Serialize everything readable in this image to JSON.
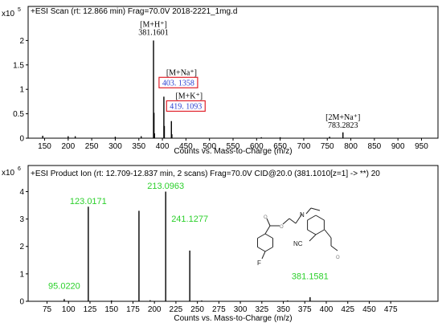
{
  "chart_data": [
    {
      "type": "bar",
      "header": "+ESI Scan (rt: 12.866 min) Frag=70.0V 2018-2221_1mg.d",
      "scale_label": "x10",
      "scale_exp": "5",
      "xlabel": "Counts vs. Mass-to-Charge (m/z)",
      "xlim": [
        115,
        985
      ],
      "ylim": [
        0,
        2.5
      ],
      "xticks": [
        150,
        200,
        250,
        300,
        350,
        400,
        450,
        500,
        550,
        600,
        650,
        700,
        750,
        800,
        850,
        900,
        950
      ],
      "yticks": [
        0,
        0.5,
        1,
        1.5,
        2
      ],
      "ytick_labels": [
        "0",
        "0.5",
        "1",
        "1.5",
        "2"
      ],
      "color": "#000000",
      "peaks": [
        {
          "x": 381.16,
          "y": 2.0
        },
        {
          "x": 382.16,
          "y": 0.52
        },
        {
          "x": 383.2,
          "y": 0.1
        },
        {
          "x": 403.14,
          "y": 0.85
        },
        {
          "x": 404.14,
          "y": 0.25
        },
        {
          "x": 419.11,
          "y": 0.35
        },
        {
          "x": 420.1,
          "y": 0.08
        },
        {
          "x": 783.28,
          "y": 0.12
        },
        {
          "x": 146,
          "y": 0.05
        },
        {
          "x": 200,
          "y": 0.04
        },
        {
          "x": 215,
          "y": 0.04
        },
        {
          "x": 300,
          "y": 0.03
        },
        {
          "x": 355,
          "y": 0.04
        },
        {
          "x": 610,
          "y": 0.02
        },
        {
          "x": 650,
          "y": 0.02
        },
        {
          "x": 755,
          "y": 0.03
        }
      ],
      "annotations": [
        {
          "x": 381.16,
          "y": 2.08,
          "lines": [
            "[M+H⁺]",
            "381.1601"
          ],
          "style": "plain"
        },
        {
          "x": 403.14,
          "y": 0.9,
          "lines": [
            "[M+Na⁺]",
            "403. 1358"
          ],
          "style": "boxed"
        },
        {
          "x": 419.11,
          "y": 0.42,
          "lines": [
            "[M+K⁺]",
            "419. 1093"
          ],
          "style": "boxed"
        },
        {
          "x": 783.28,
          "y": 0.18,
          "lines": [
            "[2M+Na⁺]",
            "783.2823"
          ],
          "style": "plain"
        }
      ]
    },
    {
      "type": "bar",
      "header": "+ESI Product Ion (rt: 12.709-12.837 min, 2 scans) Frag=70.0V CID@20.0 (381.1010[z=1] -> **) 20",
      "scale_label": "x10",
      "scale_exp": "6",
      "xlabel": "Counts vs. Mass-to-Charge (m/z)",
      "xlim": [
        53,
        530
      ],
      "ylim": [
        0,
        4.6
      ],
      "xticks": [
        75,
        100,
        125,
        150,
        175,
        200,
        225,
        250,
        275,
        300,
        325,
        350,
        375,
        400,
        425,
        450,
        475
      ],
      "yticks": [
        0,
        1,
        2,
        3,
        4
      ],
      "ytick_labels": [
        "0",
        "1",
        "2",
        "3",
        "4"
      ],
      "color": "#000000",
      "peaks": [
        {
          "x": 95.02,
          "y": 0.08
        },
        {
          "x": 123.02,
          "y": 3.45
        },
        {
          "x": 182.0,
          "y": 3.3
        },
        {
          "x": 213.1,
          "y": 4.0
        },
        {
          "x": 241.13,
          "y": 1.85
        },
        {
          "x": 381.16,
          "y": 0.15
        },
        {
          "x": 150,
          "y": 0.03
        },
        {
          "x": 195,
          "y": 0.04
        },
        {
          "x": 255,
          "y": 0.03
        },
        {
          "x": 355,
          "y": 0.03
        }
      ],
      "annotations": [
        {
          "x": 123.02,
          "y": 3.55,
          "lines": [
            "123.0171"
          ],
          "style": "green"
        },
        {
          "x": 213.1,
          "y": 4.1,
          "lines": [
            "213.0963"
          ],
          "style": "green"
        },
        {
          "x": 241.13,
          "y": 2.9,
          "lines": [
            "241.1277"
          ],
          "style": "green"
        },
        {
          "x": 95.02,
          "y": 0.45,
          "lines": [
            "95.0220"
          ],
          "style": "green"
        },
        {
          "x": 381.16,
          "y": 0.8,
          "lines": [
            "381.1581"
          ],
          "style": "green"
        }
      ],
      "structure_labels": {
        "n": "N",
        "o": "O",
        "cn": "NC",
        "f": "F"
      }
    }
  ]
}
